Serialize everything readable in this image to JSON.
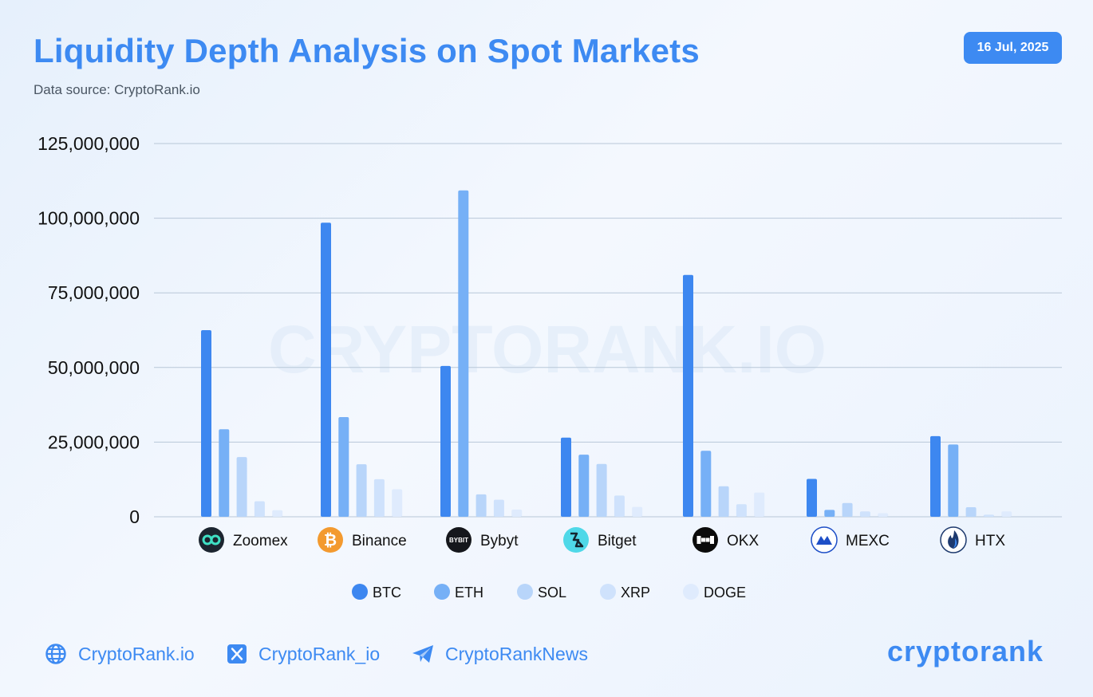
{
  "header": {
    "title": "Liquidity Depth Analysis on Spot Markets",
    "subtitle": "Data source: CryptoRank.io",
    "date": "16 Jul, 2025"
  },
  "watermark": "CRYPTORANK.IO",
  "colors": {
    "BTC": "#3d87f0",
    "ETH": "#76b0f6",
    "SOL": "#b8d5fa",
    "XRP": "#cfe2fc",
    "DOGE": "#dfebfd",
    "accent": "#3d8af2"
  },
  "exchange_icons": [
    {
      "name": "Zoomex",
      "icon": "zoomex-icon"
    },
    {
      "name": "Binance",
      "icon": "binance-icon"
    },
    {
      "name": "Bybyt",
      "icon": "bybit-icon",
      "icon_text": "BYBIT"
    },
    {
      "name": "Bitget",
      "icon": "bitget-icon"
    },
    {
      "name": "OKX",
      "icon": "okx-icon"
    },
    {
      "name": "MEXC",
      "icon": "mexc-icon"
    },
    {
      "name": "HTX",
      "icon": "htx-icon"
    }
  ],
  "chart_data": {
    "type": "bar",
    "categories": [
      "Zoomex",
      "Binance",
      "Bybyt",
      "Bitget",
      "OKX",
      "MEXC",
      "HTX"
    ],
    "series": [
      {
        "name": "BTC",
        "values": [
          62500000,
          98500000,
          50500000,
          26500000,
          81000000,
          12700000,
          27000000
        ]
      },
      {
        "name": "ETH",
        "values": [
          29300000,
          33400000,
          109300000,
          20800000,
          22100000,
          2300000,
          24200000
        ]
      },
      {
        "name": "SOL",
        "values": [
          20000000,
          17600000,
          7500000,
          17700000,
          10200000,
          4600000,
          3200000
        ]
      },
      {
        "name": "XRP",
        "values": [
          5200000,
          12600000,
          5700000,
          7100000,
          4200000,
          1800000,
          700000
        ]
      },
      {
        "name": "DOGE",
        "values": [
          2200000,
          9200000,
          2400000,
          3300000,
          8100000,
          1200000,
          1800000
        ]
      }
    ],
    "ylim": [
      0,
      125000000
    ],
    "yticks": [
      0,
      25000000,
      50000000,
      75000000,
      100000000,
      125000000
    ],
    "ytick_labels": [
      "0",
      "25,000,000",
      "50,000,000",
      "75,000,000",
      "100,000,000",
      "125,000,000"
    ],
    "grid": true,
    "legend_position": "bottom-center"
  },
  "footer": {
    "links": [
      {
        "label": "CryptoRank.io",
        "icon": "globe-icon"
      },
      {
        "label": "CryptoRank_io",
        "icon": "x-twitter-icon"
      },
      {
        "label": "CryptoRankNews",
        "icon": "telegram-icon"
      }
    ],
    "logo": "cryptorank"
  }
}
